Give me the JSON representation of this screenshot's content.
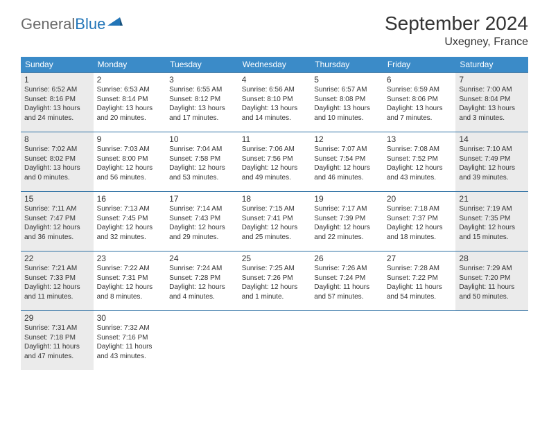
{
  "logo": {
    "text_general": "General",
    "text_blue": "Blue"
  },
  "header": {
    "month_title": "September 2024",
    "location": "Uxegney, France"
  },
  "colors": {
    "header_bg": "#3b8bc8",
    "header_text": "#ffffff",
    "border": "#2c6fa3",
    "shaded_bg": "#ebebeb",
    "text": "#333333",
    "logo_gray": "#6b6b6b",
    "logo_blue": "#2275b8"
  },
  "day_headers": [
    "Sunday",
    "Monday",
    "Tuesday",
    "Wednesday",
    "Thursday",
    "Friday",
    "Saturday"
  ],
  "days": [
    {
      "num": "1",
      "shaded": true,
      "sunrise": "Sunrise: 6:52 AM",
      "sunset": "Sunset: 8:16 PM",
      "daylight1": "Daylight: 13 hours",
      "daylight2": "and 24 minutes."
    },
    {
      "num": "2",
      "shaded": false,
      "sunrise": "Sunrise: 6:53 AM",
      "sunset": "Sunset: 8:14 PM",
      "daylight1": "Daylight: 13 hours",
      "daylight2": "and 20 minutes."
    },
    {
      "num": "3",
      "shaded": false,
      "sunrise": "Sunrise: 6:55 AM",
      "sunset": "Sunset: 8:12 PM",
      "daylight1": "Daylight: 13 hours",
      "daylight2": "and 17 minutes."
    },
    {
      "num": "4",
      "shaded": false,
      "sunrise": "Sunrise: 6:56 AM",
      "sunset": "Sunset: 8:10 PM",
      "daylight1": "Daylight: 13 hours",
      "daylight2": "and 14 minutes."
    },
    {
      "num": "5",
      "shaded": false,
      "sunrise": "Sunrise: 6:57 AM",
      "sunset": "Sunset: 8:08 PM",
      "daylight1": "Daylight: 13 hours",
      "daylight2": "and 10 minutes."
    },
    {
      "num": "6",
      "shaded": false,
      "sunrise": "Sunrise: 6:59 AM",
      "sunset": "Sunset: 8:06 PM",
      "daylight1": "Daylight: 13 hours",
      "daylight2": "and 7 minutes."
    },
    {
      "num": "7",
      "shaded": true,
      "sunrise": "Sunrise: 7:00 AM",
      "sunset": "Sunset: 8:04 PM",
      "daylight1": "Daylight: 13 hours",
      "daylight2": "and 3 minutes."
    },
    {
      "num": "8",
      "shaded": true,
      "sunrise": "Sunrise: 7:02 AM",
      "sunset": "Sunset: 8:02 PM",
      "daylight1": "Daylight: 13 hours",
      "daylight2": "and 0 minutes."
    },
    {
      "num": "9",
      "shaded": false,
      "sunrise": "Sunrise: 7:03 AM",
      "sunset": "Sunset: 8:00 PM",
      "daylight1": "Daylight: 12 hours",
      "daylight2": "and 56 minutes."
    },
    {
      "num": "10",
      "shaded": false,
      "sunrise": "Sunrise: 7:04 AM",
      "sunset": "Sunset: 7:58 PM",
      "daylight1": "Daylight: 12 hours",
      "daylight2": "and 53 minutes."
    },
    {
      "num": "11",
      "shaded": false,
      "sunrise": "Sunrise: 7:06 AM",
      "sunset": "Sunset: 7:56 PM",
      "daylight1": "Daylight: 12 hours",
      "daylight2": "and 49 minutes."
    },
    {
      "num": "12",
      "shaded": false,
      "sunrise": "Sunrise: 7:07 AM",
      "sunset": "Sunset: 7:54 PM",
      "daylight1": "Daylight: 12 hours",
      "daylight2": "and 46 minutes."
    },
    {
      "num": "13",
      "shaded": false,
      "sunrise": "Sunrise: 7:08 AM",
      "sunset": "Sunset: 7:52 PM",
      "daylight1": "Daylight: 12 hours",
      "daylight2": "and 43 minutes."
    },
    {
      "num": "14",
      "shaded": true,
      "sunrise": "Sunrise: 7:10 AM",
      "sunset": "Sunset: 7:49 PM",
      "daylight1": "Daylight: 12 hours",
      "daylight2": "and 39 minutes."
    },
    {
      "num": "15",
      "shaded": true,
      "sunrise": "Sunrise: 7:11 AM",
      "sunset": "Sunset: 7:47 PM",
      "daylight1": "Daylight: 12 hours",
      "daylight2": "and 36 minutes."
    },
    {
      "num": "16",
      "shaded": false,
      "sunrise": "Sunrise: 7:13 AM",
      "sunset": "Sunset: 7:45 PM",
      "daylight1": "Daylight: 12 hours",
      "daylight2": "and 32 minutes."
    },
    {
      "num": "17",
      "shaded": false,
      "sunrise": "Sunrise: 7:14 AM",
      "sunset": "Sunset: 7:43 PM",
      "daylight1": "Daylight: 12 hours",
      "daylight2": "and 29 minutes."
    },
    {
      "num": "18",
      "shaded": false,
      "sunrise": "Sunrise: 7:15 AM",
      "sunset": "Sunset: 7:41 PM",
      "daylight1": "Daylight: 12 hours",
      "daylight2": "and 25 minutes."
    },
    {
      "num": "19",
      "shaded": false,
      "sunrise": "Sunrise: 7:17 AM",
      "sunset": "Sunset: 7:39 PM",
      "daylight1": "Daylight: 12 hours",
      "daylight2": "and 22 minutes."
    },
    {
      "num": "20",
      "shaded": false,
      "sunrise": "Sunrise: 7:18 AM",
      "sunset": "Sunset: 7:37 PM",
      "daylight1": "Daylight: 12 hours",
      "daylight2": "and 18 minutes."
    },
    {
      "num": "21",
      "shaded": true,
      "sunrise": "Sunrise: 7:19 AM",
      "sunset": "Sunset: 7:35 PM",
      "daylight1": "Daylight: 12 hours",
      "daylight2": "and 15 minutes."
    },
    {
      "num": "22",
      "shaded": true,
      "sunrise": "Sunrise: 7:21 AM",
      "sunset": "Sunset: 7:33 PM",
      "daylight1": "Daylight: 12 hours",
      "daylight2": "and 11 minutes."
    },
    {
      "num": "23",
      "shaded": false,
      "sunrise": "Sunrise: 7:22 AM",
      "sunset": "Sunset: 7:31 PM",
      "daylight1": "Daylight: 12 hours",
      "daylight2": "and 8 minutes."
    },
    {
      "num": "24",
      "shaded": false,
      "sunrise": "Sunrise: 7:24 AM",
      "sunset": "Sunset: 7:28 PM",
      "daylight1": "Daylight: 12 hours",
      "daylight2": "and 4 minutes."
    },
    {
      "num": "25",
      "shaded": false,
      "sunrise": "Sunrise: 7:25 AM",
      "sunset": "Sunset: 7:26 PM",
      "daylight1": "Daylight: 12 hours",
      "daylight2": "and 1 minute."
    },
    {
      "num": "26",
      "shaded": false,
      "sunrise": "Sunrise: 7:26 AM",
      "sunset": "Sunset: 7:24 PM",
      "daylight1": "Daylight: 11 hours",
      "daylight2": "and 57 minutes."
    },
    {
      "num": "27",
      "shaded": false,
      "sunrise": "Sunrise: 7:28 AM",
      "sunset": "Sunset: 7:22 PM",
      "daylight1": "Daylight: 11 hours",
      "daylight2": "and 54 minutes."
    },
    {
      "num": "28",
      "shaded": true,
      "sunrise": "Sunrise: 7:29 AM",
      "sunset": "Sunset: 7:20 PM",
      "daylight1": "Daylight: 11 hours",
      "daylight2": "and 50 minutes."
    },
    {
      "num": "29",
      "shaded": true,
      "sunrise": "Sunrise: 7:31 AM",
      "sunset": "Sunset: 7:18 PM",
      "daylight1": "Daylight: 11 hours",
      "daylight2": "and 47 minutes."
    },
    {
      "num": "30",
      "shaded": false,
      "sunrise": "Sunrise: 7:32 AM",
      "sunset": "Sunset: 7:16 PM",
      "daylight1": "Daylight: 11 hours",
      "daylight2": "and 43 minutes."
    }
  ],
  "trailing_empty": 5
}
